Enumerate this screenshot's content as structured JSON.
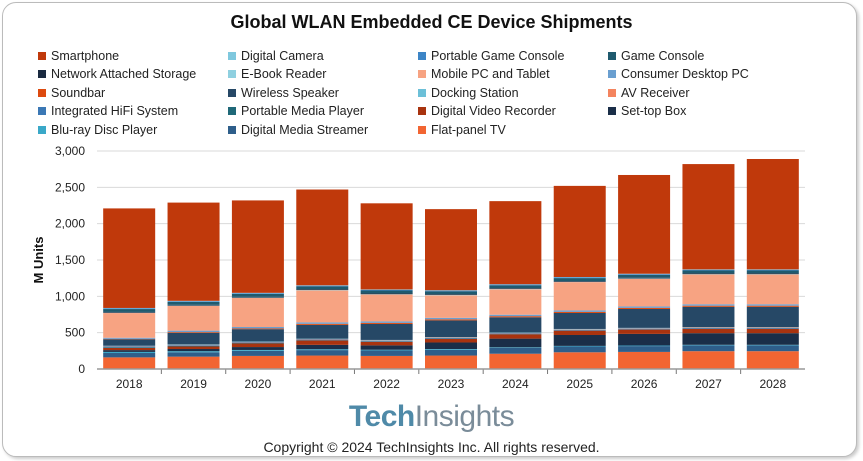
{
  "chart_data": {
    "type": "bar",
    "stacked": true,
    "title": "Global WLAN Embedded CE Device Shipments",
    "ylabel": "M Units",
    "xlabel": "",
    "ylim": [
      0,
      3000
    ],
    "yticks": [
      0,
      500,
      1000,
      1500,
      2000,
      2500,
      3000
    ],
    "ytick_labels": [
      "0",
      "500",
      "1,000",
      "1,500",
      "2,000",
      "2,500",
      "3,000"
    ],
    "grid": true,
    "legend_placement": "top",
    "categories": [
      "2018",
      "2019",
      "2020",
      "2021",
      "2022",
      "2023",
      "2024",
      "2025",
      "2026",
      "2027",
      "2028"
    ],
    "series": [
      {
        "name": "Flat-panel TV",
        "color": "#f26532",
        "values": [
          160,
          170,
          180,
          185,
          180,
          185,
          210,
          230,
          235,
          245,
          245
        ]
      },
      {
        "name": "Digital Media Streamer",
        "color": "#2e5e8a",
        "values": [
          60,
          60,
          70,
          75,
          75,
          80,
          80,
          80,
          80,
          80,
          80
        ]
      },
      {
        "name": "Blu-ray Disc Player",
        "color": "#3aa8c8",
        "values": [
          15,
          15,
          12,
          12,
          10,
          10,
          8,
          8,
          8,
          8,
          8
        ]
      },
      {
        "name": "Set-top Box",
        "color": "#1a2e48",
        "values": [
          25,
          30,
          40,
          60,
          60,
          90,
          120,
          150,
          160,
          160,
          160
        ]
      },
      {
        "name": "Digital Video Recorder",
        "color": "#a8330f",
        "values": [
          30,
          35,
          50,
          60,
          50,
          50,
          60,
          60,
          60,
          60,
          60
        ]
      },
      {
        "name": "Portable Media Player",
        "color": "#1f6878",
        "values": [
          10,
          8,
          6,
          5,
          5,
          4,
          4,
          3,
          3,
          3,
          3
        ]
      },
      {
        "name": "Integrated HiFi System",
        "color": "#3b78b5",
        "values": [
          10,
          10,
          10,
          10,
          10,
          10,
          10,
          10,
          10,
          10,
          10
        ]
      },
      {
        "name": "AV Receiver",
        "color": "#f4845f",
        "values": [
          5,
          5,
          5,
          5,
          5,
          5,
          5,
          5,
          5,
          5,
          5
        ]
      },
      {
        "name": "Docking Station",
        "color": "#6cc0d8",
        "values": [
          5,
          5,
          5,
          5,
          5,
          5,
          5,
          5,
          5,
          5,
          5
        ]
      },
      {
        "name": "Wireless Speaker",
        "color": "#264866",
        "values": [
          90,
          160,
          170,
          190,
          220,
          230,
          210,
          220,
          260,
          280,
          280
        ]
      },
      {
        "name": "Soundbar",
        "color": "#dd4a0f",
        "values": [
          5,
          10,
          10,
          15,
          15,
          15,
          15,
          15,
          15,
          15,
          15
        ]
      },
      {
        "name": "Consumer Desktop PC",
        "color": "#6a9fd0",
        "values": [
          15,
          20,
          20,
          20,
          20,
          20,
          20,
          20,
          20,
          20,
          20
        ]
      },
      {
        "name": "Mobile PC and Tablet",
        "color": "#f7a382",
        "values": [
          340,
          340,
          400,
          440,
          370,
          310,
          350,
          390,
          380,
          410,
          410
        ]
      },
      {
        "name": "E-Book Reader",
        "color": "#8fd0e0",
        "values": [
          5,
          5,
          5,
          5,
          5,
          5,
          5,
          5,
          5,
          5,
          5
        ]
      },
      {
        "name": "Network Attached Storage",
        "color": "#1a2a40",
        "values": [
          10,
          10,
          10,
          10,
          10,
          10,
          10,
          10,
          10,
          10,
          10
        ]
      },
      {
        "name": "Game Console",
        "color": "#1f5a6e",
        "values": [
          40,
          40,
          40,
          40,
          40,
          40,
          40,
          40,
          40,
          40,
          40
        ]
      },
      {
        "name": "Portable Game Console",
        "color": "#3d85c6",
        "values": [
          10,
          10,
          10,
          10,
          10,
          10,
          10,
          10,
          10,
          10,
          10
        ]
      },
      {
        "name": "Digital Camera",
        "color": "#7fc8de",
        "values": [
          5,
          5,
          5,
          5,
          5,
          5,
          5,
          5,
          5,
          5,
          5
        ]
      },
      {
        "name": "Smartphone",
        "color": "#c0390b",
        "values": [
          1370,
          1352,
          1272,
          1318,
          1185,
          1116,
          1143,
          1254,
          1359,
          1449,
          1519
        ]
      }
    ]
  },
  "footer": {
    "logo_bold": "Tech",
    "logo_light": "Insights",
    "copyright": "Copyright © 2024 TechInsights Inc.  All rights reserved."
  }
}
